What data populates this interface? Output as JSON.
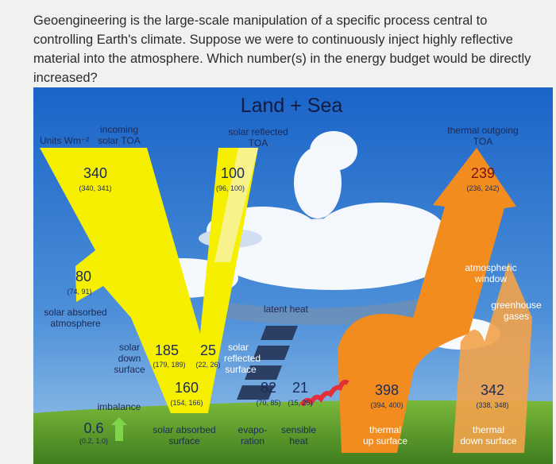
{
  "question": {
    "text": "Geoengineering is the large-scale manipulation of a specific process central to controlling Earth's climate. Suppose we were to continuously inject highly reflective material into the atmosphere. Which number(s) in the energy budget would be directly increased?"
  },
  "diagram": {
    "title": "Land + Sea",
    "units": "Units Wm⁻²",
    "incoming": [
      "incoming",
      "solar TOA"
    ],
    "reflected_toa": [
      "solar reflected",
      "TOA"
    ],
    "outgoing": [
      "thermal outgoing",
      "TOA"
    ],
    "incoming_toa": {
      "value": "340",
      "range": "(340, 341)"
    },
    "reflected_toa_value": {
      "value": "100",
      "range": "(96, 100)"
    },
    "outgoing_toa": {
      "value": "239",
      "range": "(236, 242)"
    },
    "absorbed_atmosphere": {
      "value": "80",
      "range": "(74, 91)"
    },
    "absorbed_atmosphere_label": [
      "solar absorbed",
      "atmosphere"
    ],
    "latent_heat": "latent heat",
    "window": [
      "atmospheric",
      "window"
    ],
    "greenhouse": [
      "greenhouse",
      "gases"
    ],
    "solar_down": [
      "solar",
      "down",
      "surface"
    ],
    "solar_down_value": {
      "value": "185",
      "range": "(179, 189)"
    },
    "reflected_surface": {
      "value": "25",
      "range": "(22, 26)"
    },
    "reflected_surface_label": [
      "solar",
      "reflected",
      "surface"
    ],
    "absorbed_surface": {
      "value": "160",
      "range": "(154, 166)"
    },
    "evaporation": {
      "value": "82",
      "range": "(70, 85)"
    },
    "sensible": {
      "value": "21",
      "range": "(15, 25)"
    },
    "thermal_up": {
      "value": "398",
      "range": "(394, 400)"
    },
    "thermal_down": {
      "value": "342",
      "range": "(338, 348)"
    },
    "imbalance": "imbalance",
    "imbalance_value": {
      "value": "0.6",
      "range": "(0.2, 1.0)"
    },
    "absorbed_surface_label": [
      "solar absorbed",
      "surface"
    ],
    "evaporation_label": [
      "evapo-",
      "ration"
    ],
    "sensible_label": [
      "sensible",
      "heat"
    ],
    "thermal_up_label": [
      "thermal",
      "up surface"
    ],
    "thermal_down_label": [
      "thermal",
      "down surface"
    ]
  }
}
